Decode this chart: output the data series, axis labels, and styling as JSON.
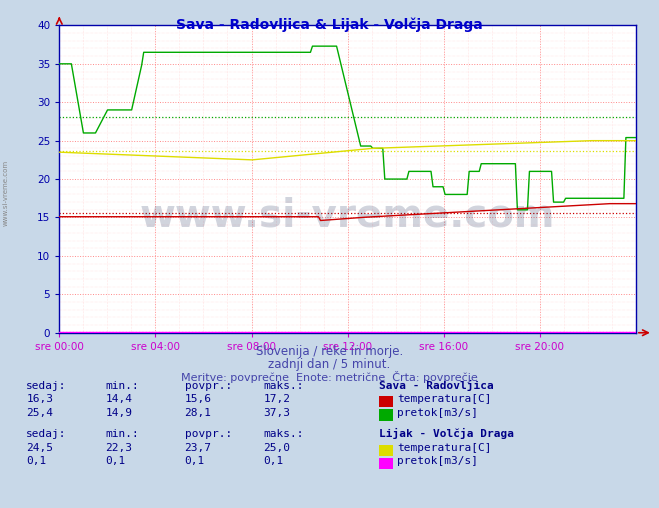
{
  "title": "Sava - Radovljica & Lijak - Volčja Draga",
  "title_color": "#0000cc",
  "bg_color": "#c8d8e8",
  "plot_bg_color": "#ffffff",
  "outer_bg_color": "#c8d8e8",
  "grid_major_color": "#ff8888",
  "grid_minor_color": "#ffcccc",
  "axis_color": "#0000aa",
  "tick_color": "#0000aa",
  "xlabel_color": "#cc00cc",
  "ylim": [
    0,
    40
  ],
  "yticks": [
    0,
    5,
    10,
    15,
    20,
    25,
    30,
    35,
    40
  ],
  "xtick_labels": [
    "sre 00:00",
    "sre 04:00",
    "sre 08:00",
    "sre 12:00",
    "sre 16:00",
    "sre 20:00"
  ],
  "xtick_positions": [
    0,
    4,
    8,
    12,
    16,
    20
  ],
  "num_points": 288,
  "sava_temp_color": "#cc0000",
  "sava_temp_avg": 15.6,
  "sava_temp_min": 14.4,
  "sava_temp_max": 17.2,
  "sava_temp_sedaj": 16.3,
  "sava_pretok_color": "#00aa00",
  "sava_pretok_avg": 28.1,
  "sava_pretok_min": 14.9,
  "sava_pretok_max": 37.3,
  "sava_pretok_sedaj": 25.4,
  "lijak_temp_color": "#dddd00",
  "lijak_temp_avg": 23.7,
  "lijak_temp_min": 22.3,
  "lijak_temp_max": 25.0,
  "lijak_temp_sedaj": 24.5,
  "lijak_pretok_color": "#ff00ff",
  "lijak_pretok_avg": 0.1,
  "lijak_pretok_min": 0.1,
  "lijak_pretok_max": 0.1,
  "lijak_pretok_sedaj": 0.1,
  "subtitle1": "Slovenija / reke in morje.",
  "subtitle2": "zadnji dan / 5 minut.",
  "subtitle3": "Meritve: povprečne  Enote: metrične  Črta: povprečje",
  "subtitle_color": "#4444aa",
  "legend_label_color": "#000088",
  "watermark": "www.si-vreme.com"
}
